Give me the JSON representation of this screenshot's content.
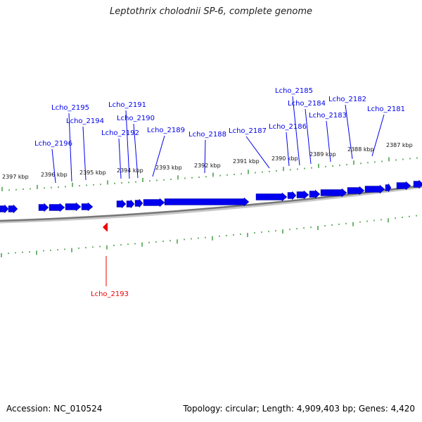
{
  "title": "Leptothrix cholodnii SP-6, complete genome",
  "footer": {
    "accession": "Accession: NC_010524",
    "topology": "Topology: circular; Length: 4,909,403 bp; Genes: 4,420"
  },
  "colors": {
    "forward_gene": "#0000ee",
    "reverse_gene": "#ee0000",
    "tick": "#228b22",
    "backbone": "#777777"
  },
  "scale_labels_kbp": [
    "2397 kbp",
    "2396 kbp",
    "2395 kbp",
    "2394 kbp",
    "2393 kbp",
    "2392 kbp",
    "2391 kbp",
    "2390 kbp",
    "2389 kbp",
    "2388 kbp",
    "2387 kbp"
  ],
  "genes": [
    {
      "name": "Lcho_2196",
      "strand": "+"
    },
    {
      "name": "Lcho_2195",
      "strand": "+"
    },
    {
      "name": "Lcho_2194",
      "strand": "+"
    },
    {
      "name": "Lcho_2193",
      "strand": "-"
    },
    {
      "name": "Lcho_2192",
      "strand": "+"
    },
    {
      "name": "Lcho_2191",
      "strand": "+"
    },
    {
      "name": "Lcho_2190",
      "strand": "+"
    },
    {
      "name": "Lcho_2189",
      "strand": "+"
    },
    {
      "name": "Lcho_2188",
      "strand": "+"
    },
    {
      "name": "Lcho_2187",
      "strand": "+"
    },
    {
      "name": "Lcho_2186",
      "strand": "+"
    },
    {
      "name": "Lcho_2185",
      "strand": "+"
    },
    {
      "name": "Lcho_2184",
      "strand": "+"
    },
    {
      "name": "Lcho_2183",
      "strand": "+"
    },
    {
      "name": "Lcho_2182",
      "strand": "+"
    },
    {
      "name": "Lcho_2181",
      "strand": "+"
    }
  ]
}
